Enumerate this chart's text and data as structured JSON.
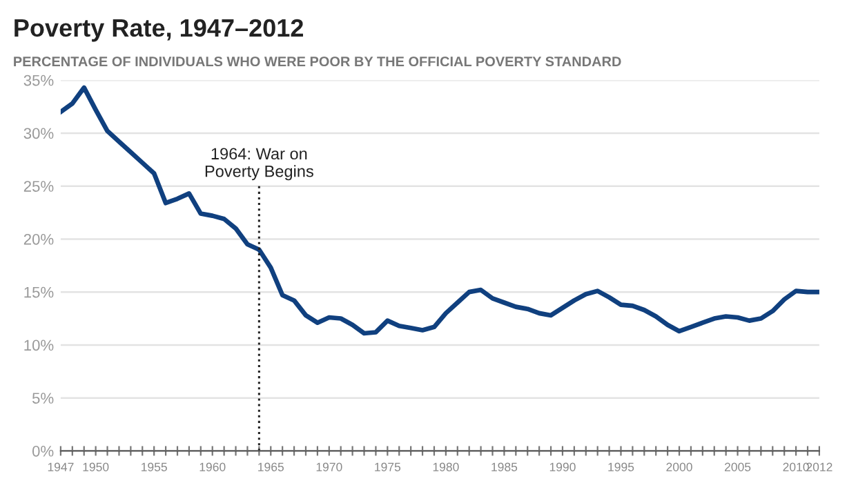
{
  "chart_data": {
    "type": "line",
    "title": "Poverty Rate, 1947–2012",
    "subtitle": "PERCENTAGE OF INDIVIDUALS WHO WERE POOR BY THE OFFICIAL POVERTY STANDARD",
    "x": [
      1947,
      1948,
      1949,
      1950,
      1951,
      1952,
      1953,
      1954,
      1955,
      1956,
      1957,
      1958,
      1959,
      1960,
      1961,
      1962,
      1963,
      1964,
      1965,
      1966,
      1967,
      1968,
      1969,
      1970,
      1971,
      1972,
      1973,
      1974,
      1975,
      1976,
      1977,
      1978,
      1979,
      1980,
      1981,
      1982,
      1983,
      1984,
      1985,
      1986,
      1987,
      1988,
      1989,
      1990,
      1991,
      1992,
      1993,
      1994,
      1995,
      1996,
      1997,
      1998,
      1999,
      2000,
      2001,
      2002,
      2003,
      2004,
      2005,
      2006,
      2007,
      2008,
      2009,
      2010,
      2011,
      2012
    ],
    "series": [
      {
        "color": "#10407f",
        "values": [
          32.0,
          32.8,
          34.3,
          32.2,
          30.2,
          29.2,
          28.2,
          27.2,
          26.2,
          23.4,
          23.8,
          24.3,
          22.4,
          22.2,
          21.9,
          21.0,
          19.5,
          19.0,
          17.3,
          14.7,
          14.2,
          12.8,
          12.1,
          12.6,
          12.5,
          11.9,
          11.1,
          11.2,
          12.3,
          11.8,
          11.6,
          11.4,
          11.7,
          13.0,
          14.0,
          15.0,
          15.2,
          14.4,
          14.0,
          13.6,
          13.4,
          13.0,
          12.8,
          13.5,
          14.2,
          14.8,
          15.1,
          14.5,
          13.8,
          13.7,
          13.3,
          12.7,
          11.9,
          11.3,
          11.7,
          12.1,
          12.5,
          12.7,
          12.6,
          12.3,
          12.5,
          13.2,
          14.3,
          15.1,
          15.0,
          15.0
        ]
      }
    ],
    "xlim": [
      1947,
      2012
    ],
    "ylim": [
      0,
      35
    ],
    "yticks": [
      {
        "value": 0,
        "label": "0%"
      },
      {
        "value": 5,
        "label": "5%"
      },
      {
        "value": 10,
        "label": "10%"
      },
      {
        "value": 15,
        "label": "15%"
      },
      {
        "value": 20,
        "label": "20%"
      },
      {
        "value": 25,
        "label": "25%"
      },
      {
        "value": 30,
        "label": "30%"
      },
      {
        "value": 35,
        "label": "35%"
      }
    ],
    "xticks": [
      1947,
      {
        "value": 1948,
        "label": null
      },
      {
        "value": 1949,
        "label": null
      },
      1950,
      {
        "value": 1951,
        "label": null
      },
      {
        "value": 1952,
        "label": null
      },
      {
        "value": 1953,
        "label": null
      },
      {
        "value": 1954,
        "label": null
      },
      1955,
      {
        "value": 1956,
        "label": null
      },
      {
        "value": 1957,
        "label": null
      },
      {
        "value": 1958,
        "label": null
      },
      {
        "value": 1959,
        "label": null
      },
      1960,
      {
        "value": 1961,
        "label": null
      },
      {
        "value": 1962,
        "label": null
      },
      {
        "value": 1963,
        "label": null
      },
      {
        "value": 1964,
        "label": null
      },
      1965,
      {
        "value": 1966,
        "label": null
      },
      {
        "value": 1967,
        "label": null
      },
      {
        "value": 1968,
        "label": null
      },
      {
        "value": 1969,
        "label": null
      },
      1970,
      {
        "value": 1971,
        "label": null
      },
      {
        "value": 1972,
        "label": null
      },
      {
        "value": 1973,
        "label": null
      },
      {
        "value": 1974,
        "label": null
      },
      1975,
      {
        "value": 1976,
        "label": null
      },
      {
        "value": 1977,
        "label": null
      },
      {
        "value": 1978,
        "label": null
      },
      {
        "value": 1979,
        "label": null
      },
      1980,
      {
        "value": 1981,
        "label": null
      },
      {
        "value": 1982,
        "label": null
      },
      {
        "value": 1983,
        "label": null
      },
      {
        "value": 1984,
        "label": null
      },
      1985,
      {
        "value": 1986,
        "label": null
      },
      {
        "value": 1987,
        "label": null
      },
      {
        "value": 1988,
        "label": null
      },
      {
        "value": 1989,
        "label": null
      },
      1990,
      {
        "value": 1991,
        "label": null
      },
      {
        "value": 1992,
        "label": null
      },
      {
        "value": 1993,
        "label": null
      },
      {
        "value": 1994,
        "label": null
      },
      1995,
      {
        "value": 1996,
        "label": null
      },
      {
        "value": 1997,
        "label": null
      },
      {
        "value": 1998,
        "label": null
      },
      {
        "value": 1999,
        "label": null
      },
      2000,
      {
        "value": 2001,
        "label": null
      },
      {
        "value": 2002,
        "label": null
      },
      {
        "value": 2003,
        "label": null
      },
      {
        "value": 2004,
        "label": null
      },
      2005,
      {
        "value": 2006,
        "label": null
      },
      {
        "value": 2007,
        "label": null
      },
      {
        "value": 2008,
        "label": null
      },
      {
        "value": 2009,
        "label": null
      },
      2010,
      {
        "value": 2011,
        "label": null
      },
      2012
    ],
    "grid": "y",
    "ref_lines": [
      {
        "axis": "x",
        "value": 1964,
        "label": "1964: War on\nPoverty Begins",
        "color": "#222222",
        "line_style": "dotted"
      }
    ]
  }
}
